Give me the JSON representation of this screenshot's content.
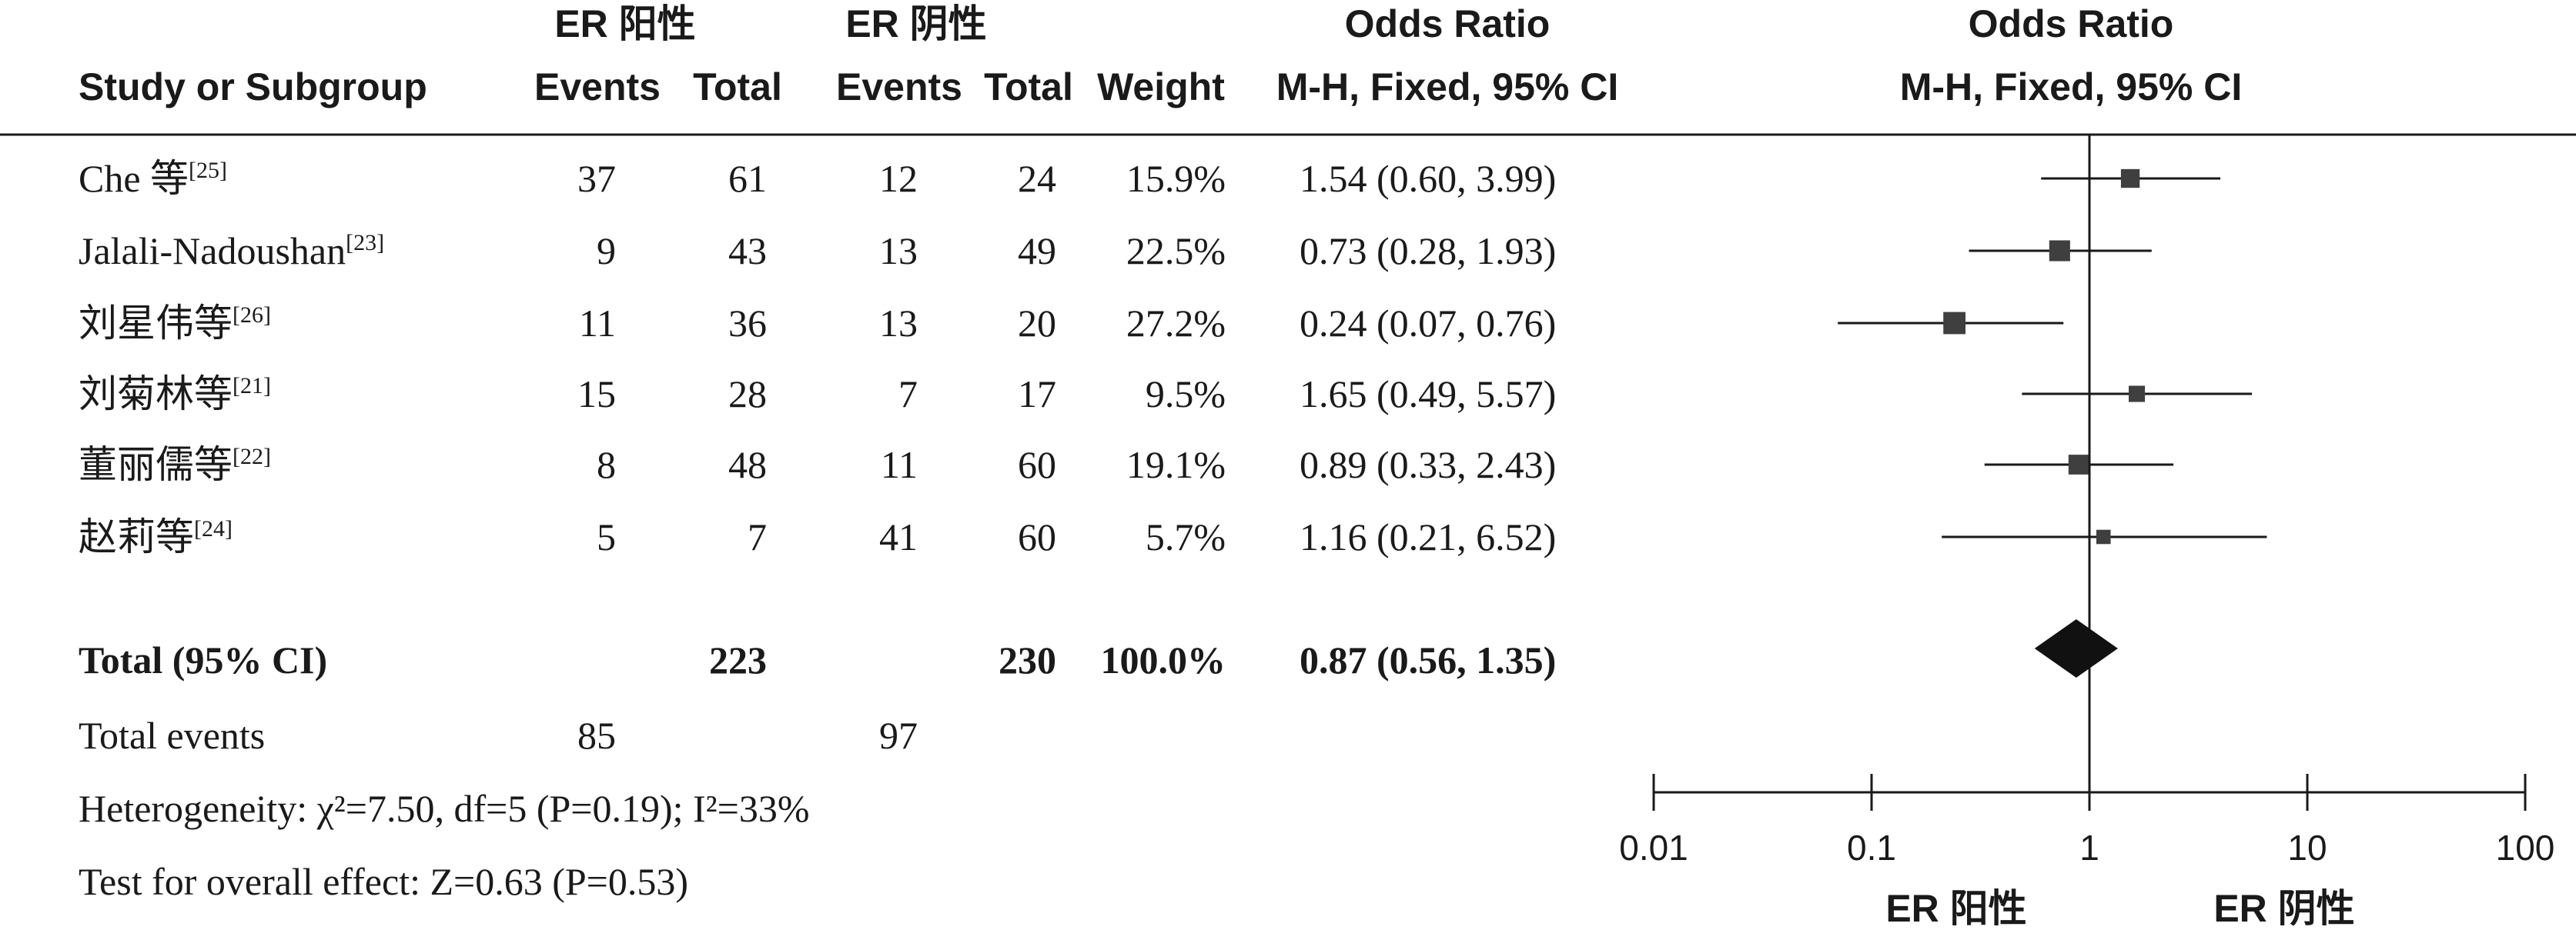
{
  "header": {
    "group1": "ER 阳性",
    "group2": "ER 阴性",
    "or_title": "Odds Ratio",
    "col_study": "Study or Subgroup",
    "col_events1": "Events",
    "col_total1": "Total",
    "col_events2": "Events",
    "col_total2": "Total",
    "col_weight": "Weight",
    "col_method": "M-H, Fixed, 95% CI",
    "plot_title": "Odds Ratio",
    "plot_method": "M-H, Fixed, 95% CI"
  },
  "chart_data": {
    "type": "forest",
    "scale": "log",
    "x_ticks": [
      "0.01",
      "0.1",
      "1",
      "10",
      "100"
    ],
    "x_range": [
      0.01,
      100
    ],
    "xlabel_left": "ER 阳性",
    "xlabel_right": "ER 阴性",
    "studies": [
      {
        "name": "Che 等",
        "ref": "[25]",
        "events1": "37",
        "total1": "61",
        "events2": "12",
        "total2": "24",
        "weight": "15.9%",
        "or_text": "1.54 (0.60, 3.99)",
        "or": 1.54,
        "lo": 0.6,
        "hi": 3.99,
        "w": 15.9
      },
      {
        "name": "Jalali-Nadoushan",
        "ref": "[23]",
        "events1": "9",
        "total1": "43",
        "events2": "13",
        "total2": "49",
        "weight": "22.5%",
        "or_text": "0.73 (0.28, 1.93)",
        "or": 0.73,
        "lo": 0.28,
        "hi": 1.93,
        "w": 22.5
      },
      {
        "name": "刘星伟等",
        "ref": "[26]",
        "events1": "11",
        "total1": "36",
        "events2": "13",
        "total2": "20",
        "weight": "27.2%",
        "or_text": "0.24 (0.07, 0.76)",
        "or": 0.24,
        "lo": 0.07,
        "hi": 0.76,
        "w": 27.2
      },
      {
        "name": "刘菊林等",
        "ref": "[21]",
        "events1": "15",
        "total1": "28",
        "events2": "7",
        "total2": "17",
        "weight": "9.5%",
        "or_text": "1.65 (0.49, 5.57)",
        "or": 1.65,
        "lo": 0.49,
        "hi": 5.57,
        "w": 9.5
      },
      {
        "name": "董丽儒等",
        "ref": "[22]",
        "events1": "8",
        "total1": "48",
        "events2": "11",
        "total2": "60",
        "weight": "19.1%",
        "or_text": "0.89 (0.33, 2.43)",
        "or": 0.89,
        "lo": 0.33,
        "hi": 2.43,
        "w": 19.1
      },
      {
        "name": "赵莉等",
        "ref": "[24]",
        "events1": "5",
        "total1": "7",
        "events2": "41",
        "total2": "60",
        "weight": "5.7%",
        "or_text": "1.16 (0.21, 6.52)",
        "or": 1.16,
        "lo": 0.21,
        "hi": 6.52,
        "w": 5.7
      }
    ],
    "total": {
      "label": "Total (95% CI)",
      "total1": "223",
      "total2": "230",
      "weight": "100.0%",
      "or_text": "0.87 (0.56, 1.35)",
      "or": 0.87,
      "lo": 0.56,
      "hi": 1.35
    },
    "total_events": {
      "label": "Total events",
      "events1": "85",
      "events2": "97"
    }
  },
  "footer": {
    "heterogeneity": "Heterogeneity: χ²=7.50, df=5 (P=0.19); I²=33%",
    "overall_effect": "Test for overall effect: Z=0.63 (P=0.53)"
  }
}
